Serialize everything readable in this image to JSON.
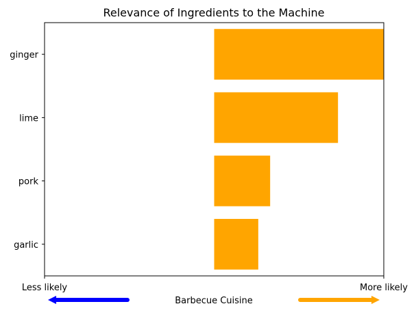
{
  "chart_data": {
    "type": "bar",
    "orientation": "horizontal",
    "title": "Relevance of Ingredients to the Machine",
    "categories": [
      "ginger",
      "lime",
      "pork",
      "garlic"
    ],
    "values": [
      1.0,
      0.73,
      0.33,
      0.26
    ],
    "xlim": [
      -1.0,
      1.0
    ],
    "bar_color": "#ffa500",
    "grid": false,
    "x_tick_labels": {
      "left": "Less likely",
      "right": "More likely"
    },
    "xlabel": "Barbecue Cuisine",
    "arrows": {
      "left_color": "#0000ff",
      "right_color": "#ffa500"
    }
  }
}
